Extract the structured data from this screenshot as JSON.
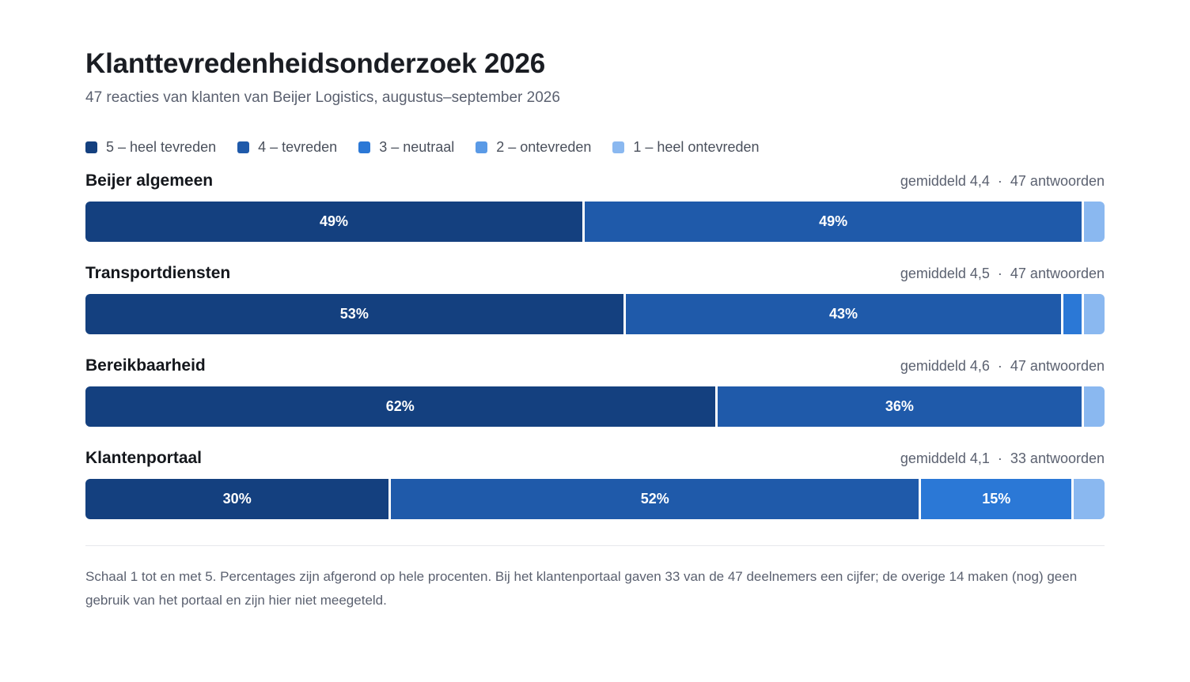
{
  "title": "Klanttevredenheidsonderzoek 2026",
  "subtitle": "47 reacties van klanten van Beijer Logistics, augustus–september 2026",
  "legend": [
    {
      "label": "5 – heel tevreden",
      "color": "#14407f"
    },
    {
      "label": "4 – tevreden",
      "color": "#1f5aaa"
    },
    {
      "label": "3 – neutraal",
      "color": "#2b78d6"
    },
    {
      "label": "2 – ontevreden",
      "color": "#5a9ae6"
    },
    {
      "label": "1 – heel ontevreden",
      "color": "#8ab8f0"
    }
  ],
  "meta_separator": "·",
  "rows": [
    {
      "label": "Beijer algemeen",
      "average": "gemiddeld 4,4",
      "count": "47 antwoorden"
    },
    {
      "label": "Transportdiensten",
      "average": "gemiddeld 4,5",
      "count": "47 antwoorden"
    },
    {
      "label": "Bereikbaarheid",
      "average": "gemiddeld 4,6",
      "count": "47 antwoorden"
    },
    {
      "label": "Klantenportaal",
      "average": "gemiddeld 4,1",
      "count": "33 antwoorden"
    }
  ],
  "chart_data": {
    "type": "bar",
    "orientation": "horizontal",
    "stacked": true,
    "unit": "%",
    "categories": [
      "Beijer algemeen",
      "Transportdiensten",
      "Bereikbaarheid",
      "Klantenportaal"
    ],
    "series": [
      {
        "name": "5 – heel tevreden",
        "values": [
          49,
          53,
          62,
          30
        ],
        "labels": [
          "49%",
          "53%",
          "62%",
          "30%"
        ]
      },
      {
        "name": "4 – tevreden",
        "values": [
          49,
          43,
          36,
          52
        ],
        "labels": [
          "49%",
          "43%",
          "36%",
          "52%"
        ]
      },
      {
        "name": "3 – neutraal",
        "values": [
          0,
          2,
          0,
          15
        ],
        "labels": [
          "",
          "",
          "",
          "15%"
        ]
      },
      {
        "name": "2 – ontevreden",
        "values": [
          0,
          0,
          0,
          0
        ],
        "labels": [
          "",
          "",
          "",
          ""
        ]
      },
      {
        "name": "1 – heel ontevreden",
        "values": [
          2,
          2,
          2,
          3
        ],
        "labels": [
          "",
          "",
          "",
          ""
        ]
      }
    ],
    "legend_position": "top-left",
    "grid": false
  },
  "note": "Schaal 1 tot en met 5. Percentages zijn afgerond op hele procenten. Bij het klantenportaal gaven 33 van de 47 deelnemers een cijfer; de overige 14 maken (nog) geen gebruik van het portaal en zijn hier niet meegeteld."
}
